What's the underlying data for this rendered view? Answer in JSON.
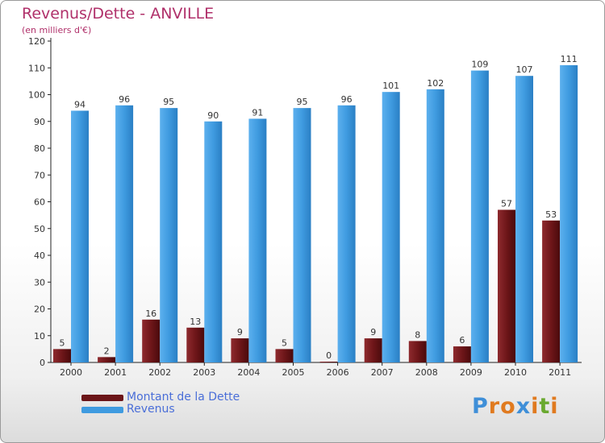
{
  "header": {
    "title": "Revenus/Dette - ANVILLE",
    "subtitle": "(en milliers d'€)"
  },
  "legend": {
    "debt_label": "Montant de la Dette",
    "revenue_label": "Revenus"
  },
  "logo": {
    "text": "Proxiti",
    "letters": [
      "P",
      "r",
      "o",
      "x",
      "i",
      "t",
      "i"
    ],
    "letter_colors": [
      "#3f8fd8",
      "#e07a1f",
      "#e07a1f",
      "#3f8fd8",
      "#e07a1f",
      "#6aa930",
      "#e07a1f"
    ]
  },
  "colors": {
    "debt": "#6b1518",
    "revenue": "#3f9be0",
    "label": "#333333",
    "axis": "#222222"
  },
  "chart_data": {
    "type": "bar",
    "title": "Revenus/Dette - ANVILLE",
    "subtitle": "(en milliers d'€)",
    "xlabel": "",
    "ylabel": "",
    "ylim": [
      0,
      120
    ],
    "yticks": [
      0,
      10,
      20,
      30,
      40,
      50,
      60,
      70,
      80,
      90,
      100,
      110,
      120
    ],
    "grid": false,
    "legend_position": "bottom-left",
    "categories": [
      "2000",
      "2001",
      "2002",
      "2003",
      "2004",
      "2005",
      "2006",
      "2007",
      "2008",
      "2009",
      "2010",
      "2011"
    ],
    "series": [
      {
        "name": "Montant de la Dette",
        "values": [
          5,
          2,
          16,
          13,
          9,
          5,
          0,
          9,
          8,
          6,
          57,
          53
        ]
      },
      {
        "name": "Revenus",
        "values": [
          94,
          96,
          95,
          90,
          91,
          95,
          96,
          101,
          102,
          109,
          107,
          111
        ]
      }
    ]
  }
}
